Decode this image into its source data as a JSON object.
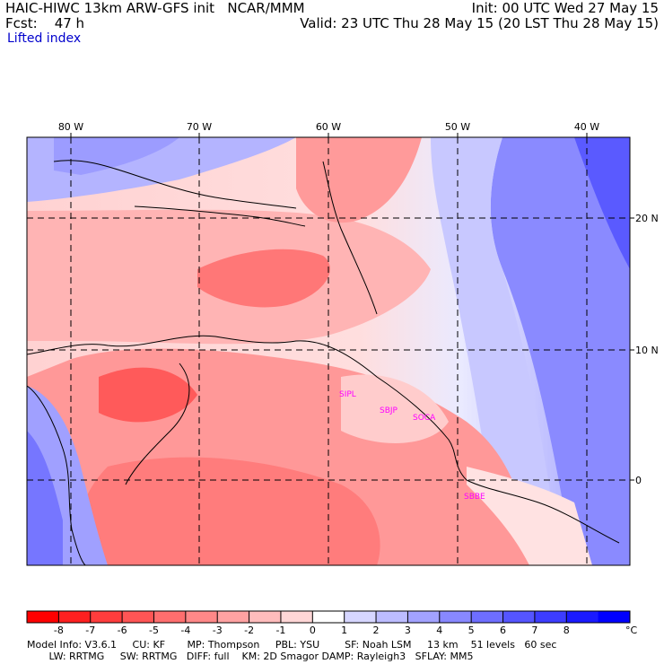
{
  "header": {
    "title": "HAIC-HIWC 13km ARW-GFS init   NCAR/MMM",
    "init": "Init: 00 UTC Wed 27 May 15",
    "fcst": "Fcst:    47 h",
    "valid": "Valid: 23 UTC Thu 28 May 15 (20 LST Thu 28 May 15)",
    "field": "Lifted index"
  },
  "map": {
    "lon_labels": [
      "80 W",
      "70 W",
      "60 W",
      "50 W",
      "40 W"
    ],
    "lat_labels": [
      "20 N",
      "10 N",
      "0"
    ],
    "stations": [
      "SIPL",
      "SBJP",
      "SOCA",
      "SBBE"
    ]
  },
  "colorbar": {
    "ticks": [
      "-8",
      "-7",
      "-6",
      "-5",
      "-4",
      "-3",
      "-2",
      "-1",
      "0",
      "1",
      "2",
      "3",
      "4",
      "5",
      "6",
      "7",
      "8"
    ],
    "unit": "°C",
    "colors": [
      "#ff0000",
      "#ff2020",
      "#ff3c3c",
      "#ff5555",
      "#ff6e6e",
      "#ff8888",
      "#ffa2a2",
      "#ffbcbc",
      "#ffd6d6",
      "#ffffff",
      "#d6d6ff",
      "#bcbcff",
      "#a2a2ff",
      "#8888ff",
      "#6e6eff",
      "#5555ff",
      "#3c3cff",
      "#1a1aff",
      "#0000ff"
    ]
  },
  "footer": {
    "line1": "Model Info: V3.6.1     CU: KF       MP: Thompson     PBL: YSU        SF: Noah LSM     13 km    51 levels   60 sec",
    "line2": "       LW: RRTMG     SW: RRTMG   DIFF: full    KM: 2D Smagor DAMP: Rayleigh3   SFLAY: MM5"
  }
}
